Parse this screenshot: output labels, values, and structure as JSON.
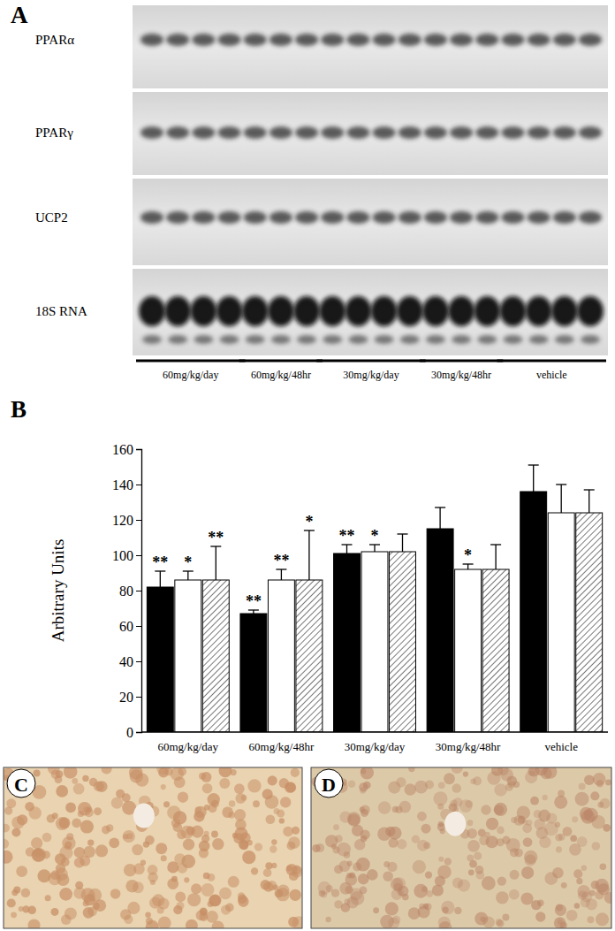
{
  "figure": {
    "panel_labels": [
      "A",
      "B",
      "C",
      "D"
    ],
    "blot": {
      "rows": [
        "PPARα",
        "PPARγ",
        "UCP2",
        "18S RNA"
      ],
      "lanes": [
        4,
        3,
        4,
        3,
        4
      ]
    }
  },
  "chart_data": {
    "type": "bar",
    "y_label": "Arbitrary Units",
    "categories": [
      "60mg/kg/day",
      "60mg/kg/48hr",
      "30mg/kg/day",
      "30mg/kg/48hr",
      "vehicle"
    ],
    "series": [
      {
        "color": "#000000",
        "values": [
          82,
          67,
          101,
          115,
          136
        ],
        "errors": [
          9,
          2,
          5,
          12,
          15
        ],
        "significance": [
          "**",
          "**",
          "**",
          null,
          null
        ]
      },
      {
        "color": "#ffffff",
        "values": [
          86,
          86,
          102,
          92,
          124
        ],
        "errors": [
          5,
          6,
          4,
          3,
          16
        ],
        "significance": [
          "*",
          "**",
          "*",
          "*",
          null
        ]
      },
      {
        "color": "#555555",
        "values": [
          86,
          86,
          102,
          92,
          124
        ],
        "errors": [
          19,
          28,
          10,
          14,
          13
        ],
        "significance": [
          "**",
          "*",
          null,
          null,
          null
        ]
      }
    ],
    "ylim": [
      0,
      160
    ],
    "yticks": [
      0,
      20,
      40,
      60,
      80,
      100,
      120,
      140,
      160
    ],
    "grid": false
  }
}
